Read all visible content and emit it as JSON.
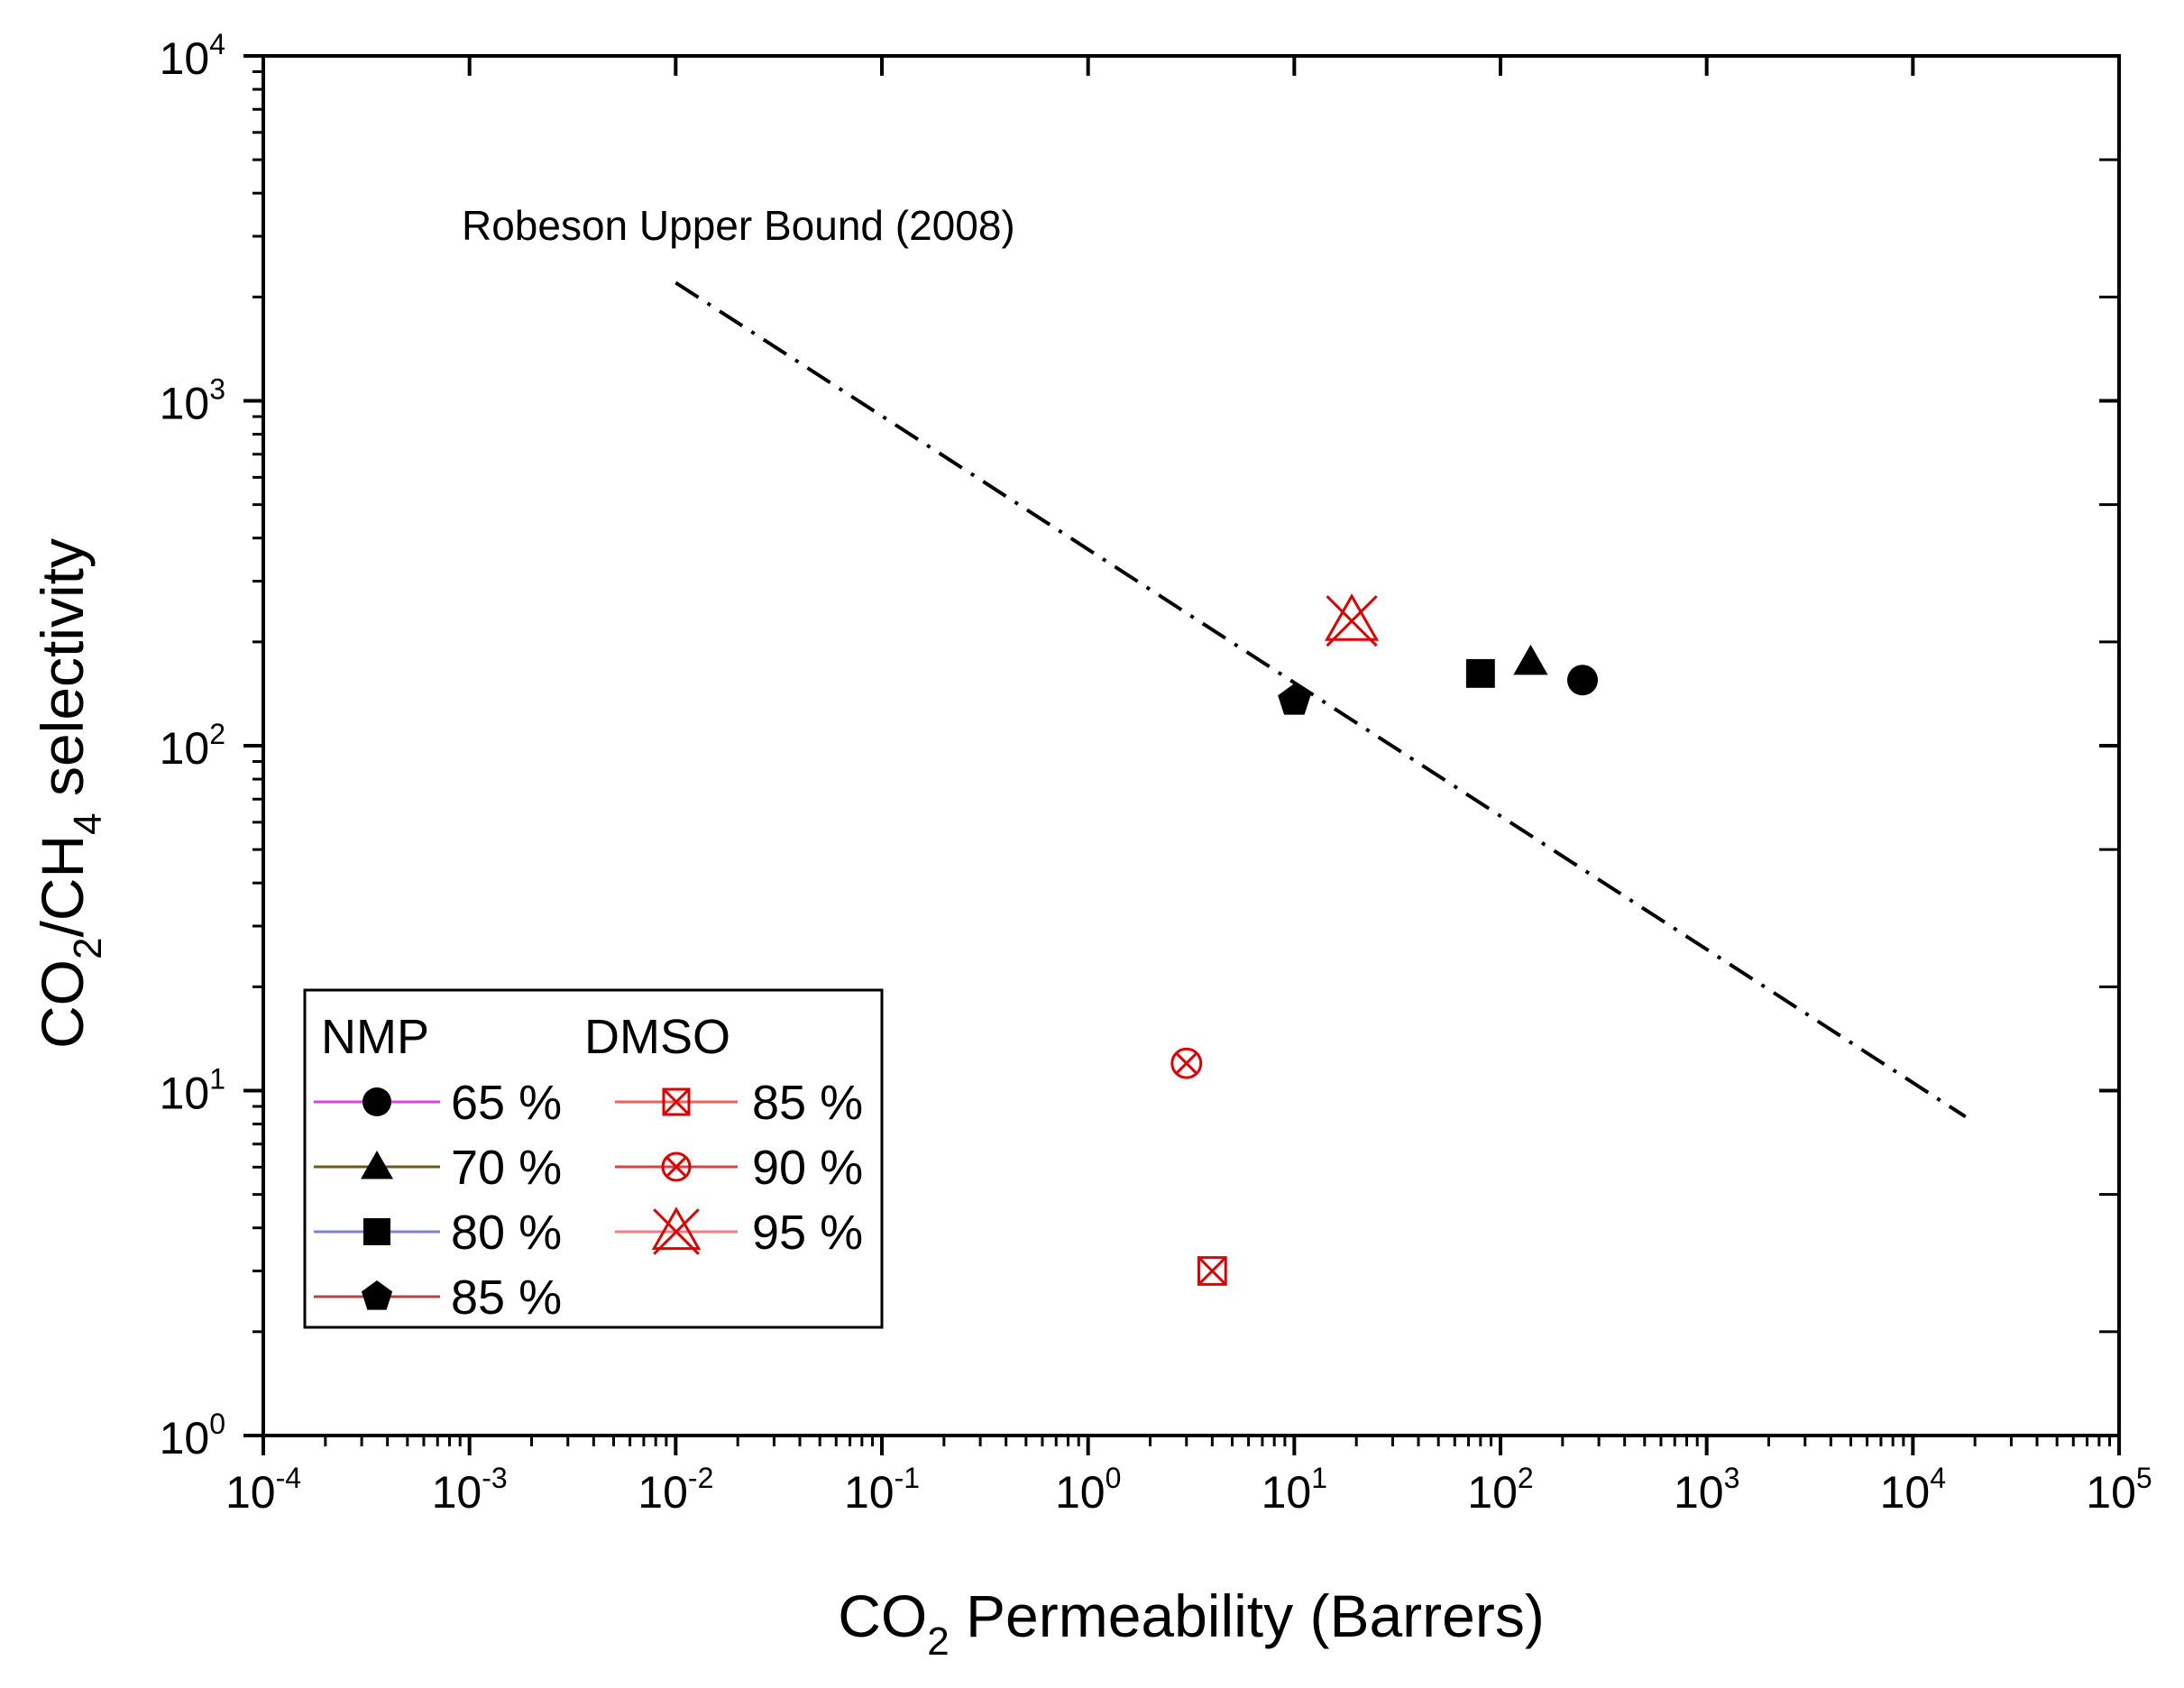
{
  "chart_data": {
    "type": "scatter",
    "title": "",
    "xlabel": {
      "pre": "CO",
      "sub": "2",
      "post": " Permeability (Barrers)"
    },
    "ylabel": {
      "p1": "CO",
      "s1": "2",
      "p2": "/CH",
      "s2": "4",
      "p3": " selectivity"
    },
    "xscale": "log",
    "yscale": "log",
    "xlim": [
      0.0001,
      100000
    ],
    "ylim": [
      1,
      10000
    ],
    "x_ticks": [
      {
        "base": "10",
        "exp": "-4"
      },
      {
        "base": "10",
        "exp": "-3"
      },
      {
        "base": "10",
        "exp": "-2"
      },
      {
        "base": "10",
        "exp": "-1"
      },
      {
        "base": "10",
        "exp": "0"
      },
      {
        "base": "10",
        "exp": "1"
      },
      {
        "base": "10",
        "exp": "2"
      },
      {
        "base": "10",
        "exp": "3"
      },
      {
        "base": "10",
        "exp": "4"
      },
      {
        "base": "10",
        "exp": "5"
      }
    ],
    "y_ticks": [
      {
        "base": "10",
        "exp": "0"
      },
      {
        "base": "10",
        "exp": "1"
      },
      {
        "base": "10",
        "exp": "2"
      },
      {
        "base": "10",
        "exp": "3"
      },
      {
        "base": "10",
        "exp": "4"
      }
    ],
    "upper_bound": {
      "label": "Robeson Upper Bound (2008)",
      "x": [
        0.01,
        18000
      ],
      "y": [
        2200,
        8.4
      ],
      "style": "dash-dot",
      "color": "#000000"
    },
    "legend": {
      "position": "bottom-left",
      "group_titles": [
        "NMP",
        "DMSO"
      ]
    },
    "series": [
      {
        "group": "NMP",
        "name": "65 %",
        "marker": "circle",
        "color": "#000000",
        "line_color": "#e040e0",
        "x": [
          250
        ],
        "y": [
          155
        ]
      },
      {
        "group": "NMP",
        "name": "70 %",
        "marker": "triangle",
        "color": "#000000",
        "line_color": "#6b5a1e",
        "x": [
          140
        ],
        "y": [
          175
        ]
      },
      {
        "group": "NMP",
        "name": "80 %",
        "marker": "square",
        "color": "#000000",
        "line_color": "#8080d0",
        "x": [
          80
        ],
        "y": [
          162
        ]
      },
      {
        "group": "NMP",
        "name": "85 %",
        "marker": "pentagon",
        "color": "#000000",
        "line_color": "#c04040",
        "x": [
          10
        ],
        "y": [
          135
        ]
      },
      {
        "group": "DMSO",
        "name": "85 %",
        "marker": "boxed-x",
        "color": "#e00000",
        "line_color": "#f06060",
        "x": [
          4
        ],
        "y": [
          3
        ]
      },
      {
        "group": "DMSO",
        "name": "90 %",
        "marker": "circled-x",
        "color": "#e00000",
        "line_color": "#e04040",
        "x": [
          3
        ],
        "y": [
          12
        ]
      },
      {
        "group": "DMSO",
        "name": "95 %",
        "marker": "x-triangle",
        "color": "#e00000",
        "line_color": "#f08080",
        "x": [
          19
        ],
        "y": [
          230
        ]
      }
    ]
  }
}
